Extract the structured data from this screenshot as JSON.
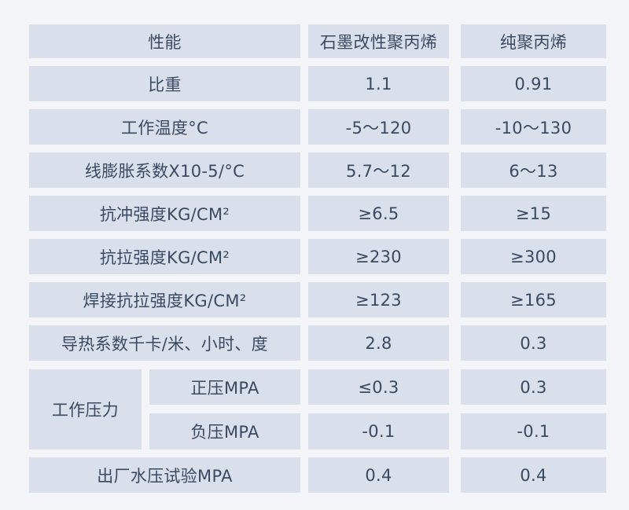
{
  "table": {
    "headers": {
      "property": "性能",
      "graphite_pp": "石墨改性聚丙烯",
      "pure_pp": "纯聚丙烯"
    },
    "rows": [
      {
        "property": "比重",
        "graphite_pp": "1.1",
        "pure_pp": "0.91"
      },
      {
        "property": "工作温度°C",
        "graphite_pp": "-5～120",
        "pure_pp": "-10～130"
      },
      {
        "property": "线膨胀系数X10-5/°C",
        "graphite_pp": "5.7～12",
        "pure_pp": "6～13"
      },
      {
        "property": "抗冲强度KG/CM²",
        "graphite_pp": "≥6.5",
        "pure_pp": "≥15"
      },
      {
        "property": "抗拉强度KG/CM²",
        "graphite_pp": "≥230",
        "pure_pp": "≥300"
      },
      {
        "property": "焊接抗拉强度KG/CM²",
        "graphite_pp": "≥123",
        "pure_pp": "≥165"
      },
      {
        "property": "导热系数千卡/米、小时、度",
        "graphite_pp": "2.8",
        "pure_pp": "0.3"
      }
    ],
    "working_pressure": {
      "label": "工作压力",
      "positive": {
        "label": "正压MPA",
        "graphite_pp": "≤0.3",
        "pure_pp": "0.3"
      },
      "negative": {
        "label": "负压MPA",
        "graphite_pp": "-0.1",
        "pure_pp": "-0.1"
      }
    },
    "hydro_test": {
      "property": "出厂水压试验MPA",
      "graphite_pp": "0.4",
      "pure_pp": "0.4"
    }
  }
}
